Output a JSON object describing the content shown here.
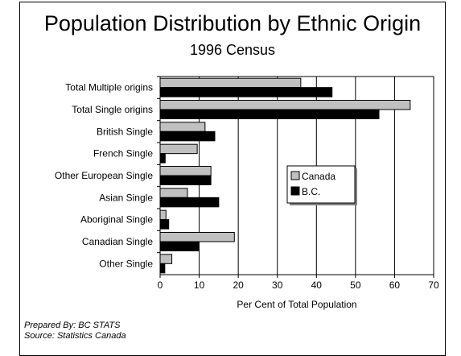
{
  "chart_data": {
    "type": "bar",
    "orientation": "horizontal",
    "title": "Population Distribution by Ethnic Origin",
    "subtitle": "1996 Census",
    "xlabel": "Per Cent  of Total Population",
    "ylabel": "",
    "xlim": [
      0,
      70
    ],
    "x_ticks": [
      0,
      10,
      20,
      30,
      40,
      50,
      60,
      70
    ],
    "grid": "vertical",
    "legend_position": "middle-right",
    "categories": [
      "Total Multiple origins",
      "Total Single origins",
      "British Single",
      "French Single",
      "Other European Single",
      "Asian Single",
      "Aboriginal Single",
      "Canadian Single",
      "Other Single"
    ],
    "series": [
      {
        "name": "Canada",
        "color": "#c0c0c0",
        "values": [
          36,
          64,
          11.5,
          9.5,
          13,
          7,
          1.5,
          19,
          3
        ]
      },
      {
        "name": "B.C.",
        "color": "#000000",
        "values": [
          44,
          56,
          14,
          1.3,
          13,
          15,
          2.2,
          9.8,
          1.2
        ]
      }
    ]
  },
  "footer": {
    "prepared_by": "Prepared By: BC STATS",
    "source": "Source: Statistics Canada"
  }
}
